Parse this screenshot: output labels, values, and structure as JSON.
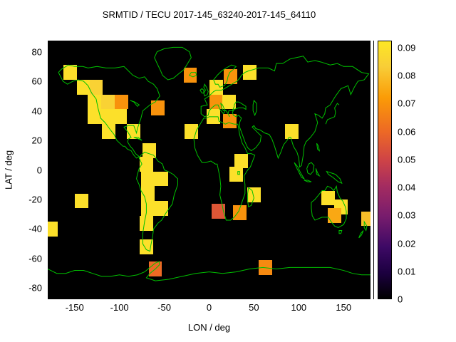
{
  "chart_data": {
    "type": "heatmap",
    "title": "SRMTID / TECU 2017-145_63240-2017-145_64110",
    "xlabel": "LON / deg",
    "ylabel": "LAT / deg",
    "xlim": [
      -180,
      180
    ],
    "ylim": [
      -87.5,
      87.5
    ],
    "x_ticks": [
      -150,
      -100,
      -50,
      0,
      50,
      100,
      150
    ],
    "y_ticks": [
      80,
      60,
      40,
      20,
      0,
      -20,
      -40,
      -60,
      -80
    ],
    "grid": false,
    "background_color": "#000000",
    "coastline_color": "#00c000",
    "cell_size_deg": {
      "lon": 15,
      "lat": 10
    },
    "colorbar": {
      "min": 0,
      "max": 0.0925,
      "position": "right",
      "ticks": [
        0,
        0.01,
        0.02,
        0.03,
        0.04,
        0.05,
        0.06,
        0.07,
        0.08,
        0.09
      ],
      "tick_labels": [
        "0",
        "0.01",
        "0.02",
        "0.03",
        "0.04",
        "0.05",
        "0.06",
        "0.07",
        "0.08",
        "0.09"
      ]
    },
    "palette_stops": [
      [
        0.0,
        "#000000"
      ],
      [
        0.1,
        "#1c0040"
      ],
      [
        0.2,
        "#3d0965"
      ],
      [
        0.32,
        "#781c6d"
      ],
      [
        0.44,
        "#a52c60"
      ],
      [
        0.54,
        "#cf4446"
      ],
      [
        0.65,
        "#ed6925"
      ],
      [
        0.78,
        "#fb9b06"
      ],
      [
        0.9,
        "#f8cd37"
      ],
      [
        1.0,
        "#fde725"
      ]
    ],
    "cells": [
      {
        "lon": -155,
        "lat": 66,
        "value": 0.09
      },
      {
        "lon": -140,
        "lat": 56,
        "value": 0.09
      },
      {
        "lon": -126,
        "lat": 56,
        "value": 0.085
      },
      {
        "lon": -128,
        "lat": 46,
        "value": 0.09
      },
      {
        "lon": -113,
        "lat": 46,
        "value": 0.085
      },
      {
        "lon": -98,
        "lat": 46,
        "value": 0.07
      },
      {
        "lon": -128,
        "lat": 36,
        "value": 0.09
      },
      {
        "lon": -113,
        "lat": 36,
        "value": 0.09
      },
      {
        "lon": -99,
        "lat": 36,
        "value": 0.09
      },
      {
        "lon": -112,
        "lat": 26,
        "value": 0.09
      },
      {
        "lon": -84,
        "lat": 26,
        "value": 0.09
      },
      {
        "lon": -57,
        "lat": 42,
        "value": 0.07
      },
      {
        "lon": -21,
        "lat": 64,
        "value": 0.07
      },
      {
        "lon": 8,
        "lat": 56,
        "value": 0.09
      },
      {
        "lon": 24,
        "lat": 63,
        "value": 0.07
      },
      {
        "lon": 8,
        "lat": 46,
        "value": 0.07
      },
      {
        "lon": 22,
        "lat": 46,
        "value": 0.09
      },
      {
        "lon": 45,
        "lat": 66,
        "value": 0.09
      },
      {
        "lon": 5,
        "lat": 36,
        "value": 0.09
      },
      {
        "lon": 23,
        "lat": 33,
        "value": 0.07
      },
      {
        "lon": -20,
        "lat": 26,
        "value": 0.09
      },
      {
        "lon": 92,
        "lat": 26,
        "value": 0.09
      },
      {
        "lon": 36,
        "lat": 6,
        "value": 0.09
      },
      {
        "lon": 30,
        "lat": -3,
        "value": 0.09
      },
      {
        "lon": 50,
        "lat": -17,
        "value": 0.09
      },
      {
        "lon": 10,
        "lat": -28,
        "value": 0.055
      },
      {
        "lon": 34,
        "lat": -29,
        "value": 0.07
      },
      {
        "lon": -67,
        "lat": 13,
        "value": 0.09
      },
      {
        "lon": -70,
        "lat": 4,
        "value": 0.09
      },
      {
        "lon": -68,
        "lat": -6,
        "value": 0.09
      },
      {
        "lon": -53,
        "lat": -6,
        "value": 0.09
      },
      {
        "lon": -68,
        "lat": -16,
        "value": 0.09
      },
      {
        "lon": -68,
        "lat": -26,
        "value": 0.09
      },
      {
        "lon": -53,
        "lat": -26,
        "value": 0.09
      },
      {
        "lon": -70,
        "lat": -36,
        "value": 0.09
      },
      {
        "lon": -70,
        "lat": -52,
        "value": 0.09
      },
      {
        "lon": -142,
        "lat": -21,
        "value": 0.09
      },
      {
        "lon": -176,
        "lat": -40,
        "value": 0.09
      },
      {
        "lon": 177,
        "lat": -33,
        "value": 0.08
      },
      {
        "lon": 133,
        "lat": -19,
        "value": 0.09
      },
      {
        "lon": 147,
        "lat": -25,
        "value": 0.09
      },
      {
        "lon": 140,
        "lat": -31,
        "value": 0.075
      },
      {
        "lon": -60,
        "lat": -67,
        "value": 0.06
      },
      {
        "lon": 63,
        "lat": -66,
        "value": 0.068
      }
    ]
  }
}
